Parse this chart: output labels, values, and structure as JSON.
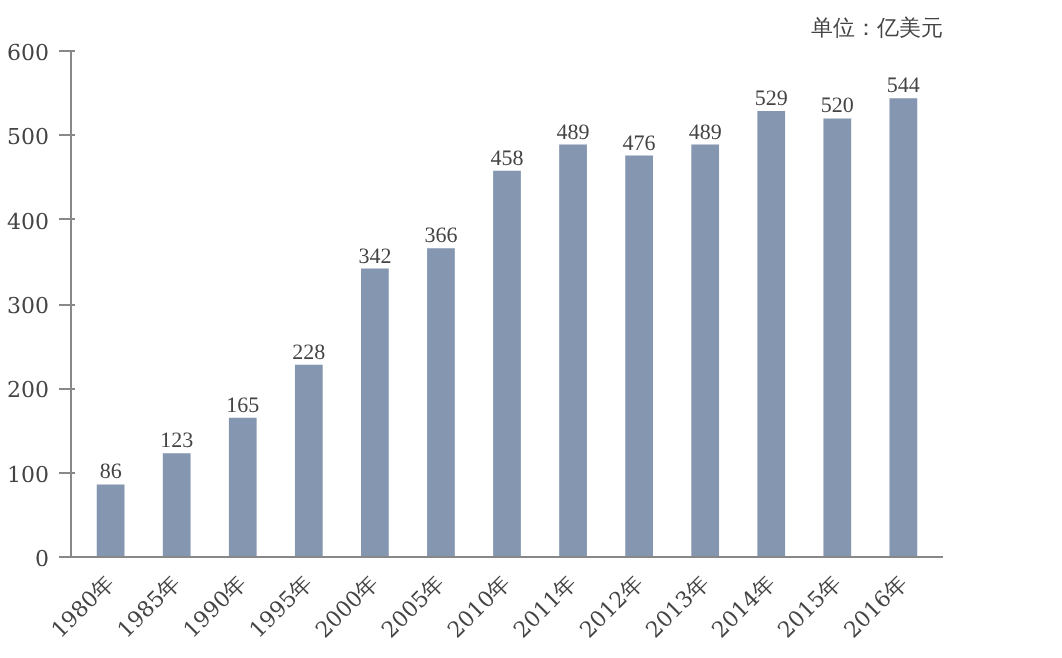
{
  "chart_data": {
    "type": "bar",
    "annotations": [
      "单位：亿美元"
    ],
    "categories": [
      "1980年",
      "1985年",
      "1990年",
      "1995年",
      "2000年",
      "2005年",
      "2010年",
      "2011年",
      "2012年",
      "2013年",
      "2014年",
      "2015年",
      "2016年"
    ],
    "values": [
      86,
      123,
      165,
      228,
      342,
      366,
      458,
      489,
      476,
      489,
      529,
      520,
      544
    ],
    "color": "#8496b0",
    "ylim": [
      0,
      600
    ],
    "yticks": [
      0,
      100,
      200,
      300,
      400,
      500,
      600
    ],
    "data_labels": true,
    "grid": false
  }
}
